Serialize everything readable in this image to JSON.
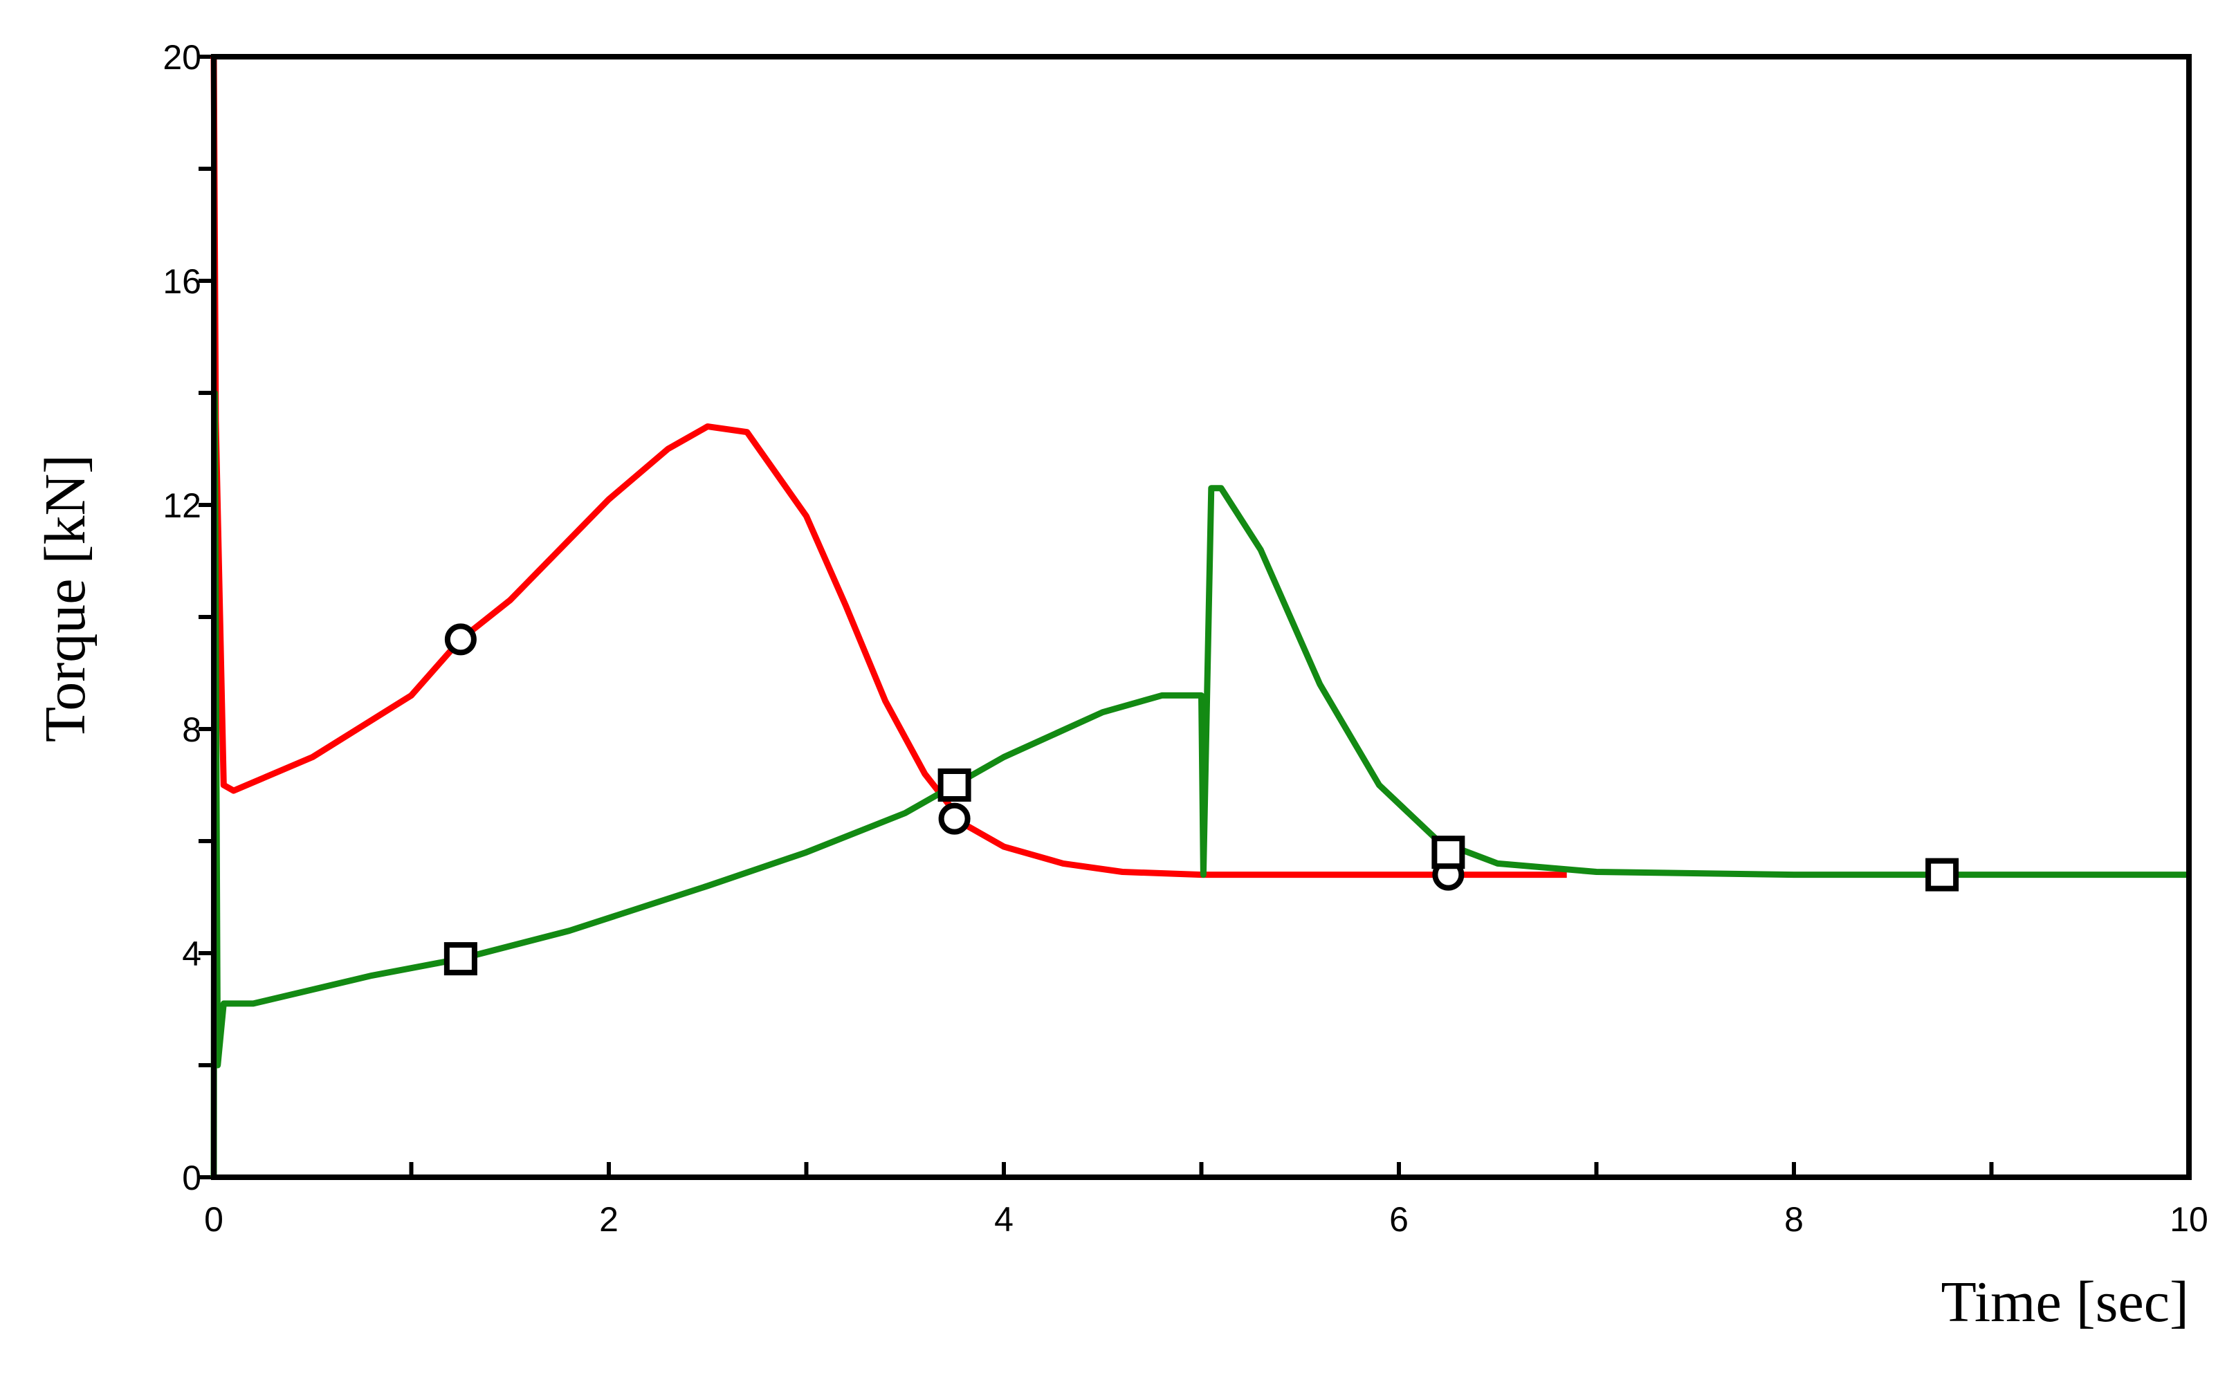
{
  "chart_data": {
    "type": "line",
    "x_label": "Time [sec]",
    "y_label": "Torque [kN]",
    "xlim": [
      0,
      10
    ],
    "ylim": [
      0,
      20
    ],
    "xticks": [
      0,
      2,
      4,
      6,
      8,
      10
    ],
    "yticks": [
      0,
      4,
      8,
      12,
      16,
      20
    ],
    "xminor": [
      1,
      3,
      5,
      7,
      9
    ],
    "yminor": [
      2,
      6,
      10,
      14,
      18
    ],
    "series": [
      {
        "color": "#ff0000",
        "marker": "circle",
        "x": [
          0,
          0.01,
          0.05,
          0.1,
          0.5,
          1,
          1.25,
          1.5,
          2,
          2.3,
          2.5,
          2.7,
          3,
          3.2,
          3.4,
          3.6,
          3.8,
          4,
          4.3,
          4.6,
          5,
          6,
          6.85
        ],
        "values": [
          20,
          13.5,
          7.0,
          6.9,
          7.5,
          8.6,
          9.6,
          10.3,
          12.1,
          13.0,
          13.4,
          13.3,
          11.8,
          10.2,
          8.5,
          7.2,
          6.3,
          5.9,
          5.6,
          5.45,
          5.4,
          5.4,
          5.4
        ],
        "marker_x": [
          1.25,
          3.75,
          6.25
        ],
        "marker_values": [
          9.6,
          6.4,
          5.4
        ]
      },
      {
        "color": "#138a13",
        "marker": "square",
        "x": [
          0,
          0.005,
          0.02,
          0.05,
          0.2,
          0.8,
          1.25,
          1.8,
          2.5,
          3,
          3.5,
          3.75,
          4,
          4.5,
          4.8,
          5.0,
          5.01,
          5.05,
          5.1,
          5.3,
          5.6,
          5.9,
          6.2,
          6.5,
          7,
          8,
          10
        ],
        "values": [
          0,
          14,
          2,
          3.1,
          3.1,
          3.6,
          3.9,
          4.4,
          5.2,
          5.8,
          6.5,
          7.0,
          7.5,
          8.3,
          8.6,
          8.6,
          5.4,
          12.3,
          12.3,
          11.2,
          8.8,
          7.0,
          6.0,
          5.6,
          5.45,
          5.4,
          5.4
        ],
        "marker_x": [
          1.25,
          3.75,
          6.25,
          8.75
        ],
        "marker_values": [
          3.9,
          7.0,
          5.8,
          5.4
        ]
      }
    ]
  }
}
